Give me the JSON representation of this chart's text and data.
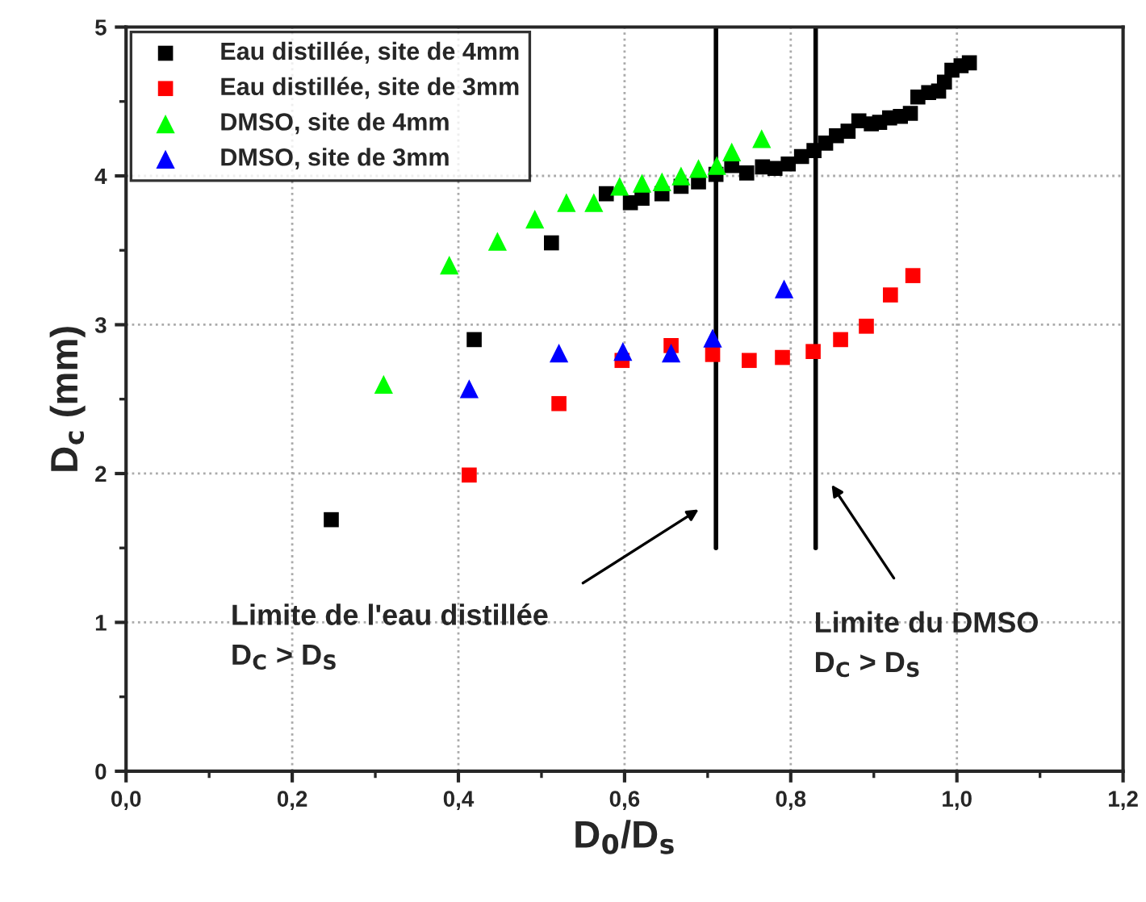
{
  "chart_data": {
    "type": "scatter",
    "xlabel": "D$_{0}$/D$_{s}$",
    "ylabel": "D$_{c}$ (mm)",
    "xlim": [
      0,
      1.2
    ],
    "ylim": [
      0,
      5
    ],
    "xticks": [
      {
        "value": 0,
        "label": "0,0"
      },
      {
        "value": 0.2,
        "label": "0,2"
      },
      {
        "value": 0.4,
        "label": "0,4"
      },
      {
        "value": 0.6,
        "label": "0,6"
      },
      {
        "value": 0.8,
        "label": "0,8"
      },
      {
        "value": 1.0,
        "label": "1,0"
      },
      {
        "value": 1.2,
        "label": "1,2"
      }
    ],
    "yticks": [
      0,
      1,
      2,
      3,
      4,
      5
    ],
    "grid": true,
    "legend": "top left",
    "series": [
      {
        "name": "Eau distillée, site de 4mm",
        "color": "#000000",
        "marker": "square",
        "x": [
          0.247,
          0.419,
          0.512,
          0.578,
          0.607,
          0.621,
          0.645,
          0.668,
          0.689,
          0.71,
          0.729,
          0.747,
          0.766,
          0.781,
          0.797,
          0.813,
          0.828,
          0.842,
          0.855,
          0.869,
          0.882,
          0.897,
          0.907,
          0.919,
          0.932,
          0.944,
          0.953,
          0.966,
          0.978,
          0.985,
          0.994,
          1.005,
          1.015
        ],
        "values": [
          1.69,
          2.9,
          3.55,
          3.88,
          3.82,
          3.85,
          3.88,
          3.93,
          3.96,
          4.01,
          4.07,
          4.02,
          4.06,
          4.05,
          4.08,
          4.13,
          4.17,
          4.22,
          4.27,
          4.3,
          4.37,
          4.35,
          4.36,
          4.39,
          4.4,
          4.42,
          4.53,
          4.56,
          4.57,
          4.63,
          4.71,
          4.74,
          4.76
        ]
      },
      {
        "name": "Eau distillée, site de 3mm",
        "color": "#ff0000",
        "marker": "square",
        "x": [
          0.413,
          0.521,
          0.597,
          0.656,
          0.706,
          0.75,
          0.79,
          0.827,
          0.86,
          0.891,
          0.92,
          0.947
        ],
        "values": [
          1.99,
          2.47,
          2.76,
          2.86,
          2.8,
          2.76,
          2.78,
          2.82,
          2.9,
          2.99,
          3.2,
          3.33
        ]
      },
      {
        "name": "DMSO, site de 4mm",
        "color": "#00ff00",
        "marker": "triangle",
        "x": [
          0.31,
          0.389,
          0.447,
          0.492,
          0.53,
          0.563,
          0.594,
          0.621,
          0.645,
          0.668,
          0.689,
          0.711,
          0.729,
          0.765
        ],
        "values": [
          2.6,
          3.4,
          3.56,
          3.71,
          3.82,
          3.82,
          3.93,
          3.95,
          3.96,
          4.0,
          4.05,
          4.07,
          4.16,
          4.25
        ]
      },
      {
        "name": "DMSO, site de 3mm",
        "color": "#0000ff",
        "marker": "triangle",
        "x": [
          0.413,
          0.521,
          0.598,
          0.656,
          0.706,
          0.792
        ],
        "values": [
          2.57,
          2.81,
          2.82,
          2.81,
          2.91,
          3.24
        ]
      }
    ],
    "ref_lines": [
      {
        "axis": "x",
        "value": 0.71,
        "color": "#000000"
      },
      {
        "axis": "x",
        "value": 0.83,
        "color": "#000000"
      }
    ],
    "annotations": [
      "Limite de l'eau distillée\nD$_{C}$ > D$_{S}$",
      "Limite du DMSO\nD$_{C}$ > D$_{S}$"
    ]
  }
}
